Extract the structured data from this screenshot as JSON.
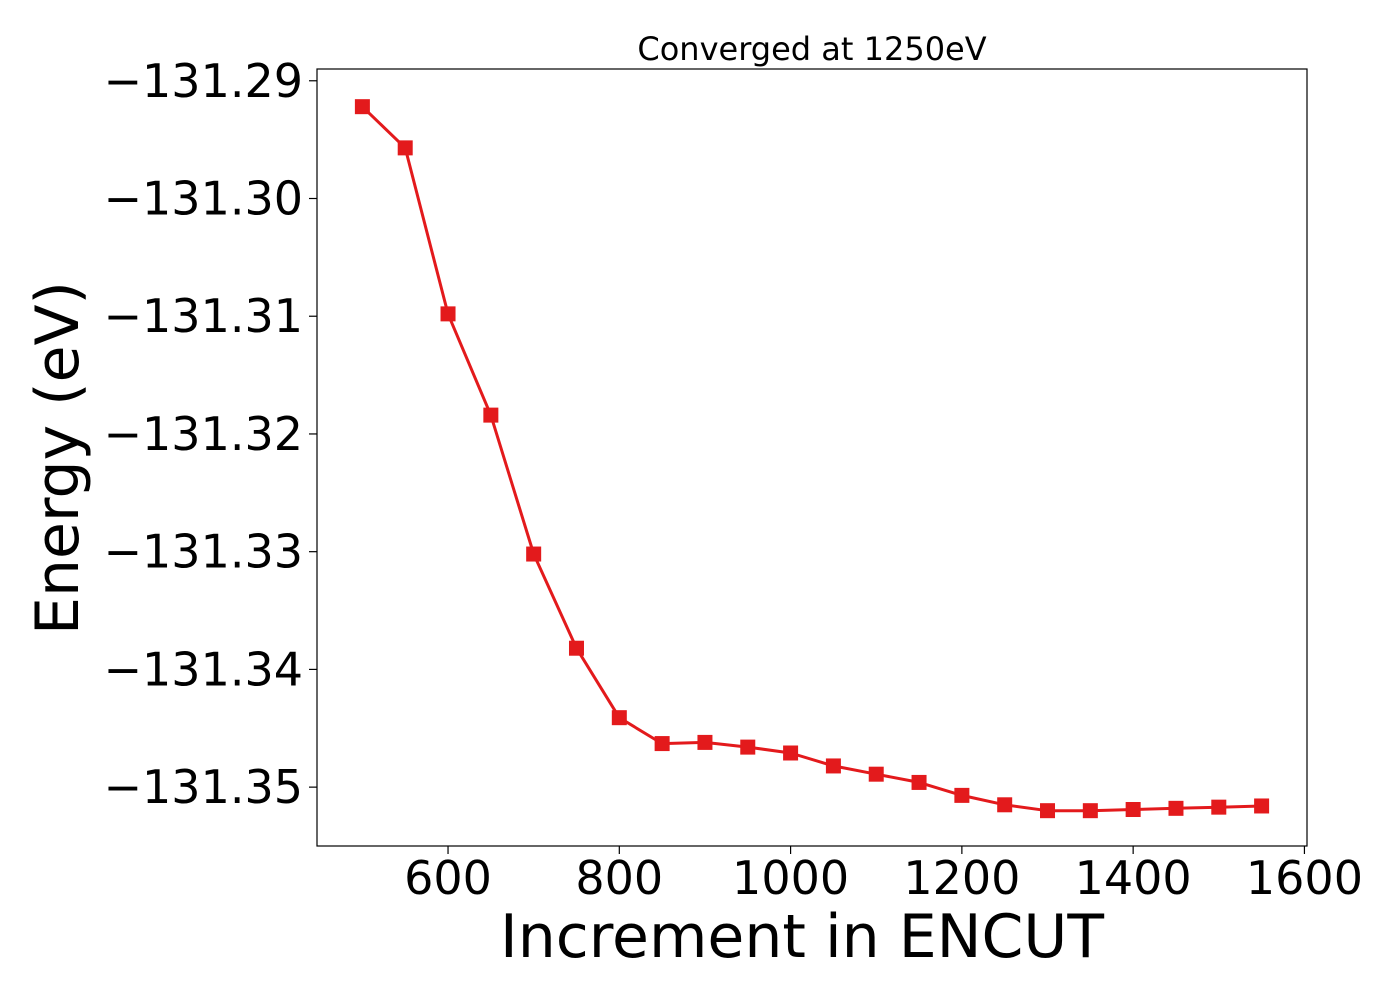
{
  "chart_data": {
    "type": "line",
    "title": "Converged at 1250eV",
    "xlabel": "Increment in ENCUT",
    "ylabel": "Energy (eV)",
    "xlim": [
      447,
      1603
    ],
    "ylim": [
      -131.355,
      -131.289
    ],
    "xticks": [
      600,
      800,
      1000,
      1200,
      1400,
      1600
    ],
    "xtick_labels": [
      "600",
      "800",
      "1000",
      "1200",
      "1400",
      "1600"
    ],
    "yticks": [
      -131.29,
      -131.3,
      -131.31,
      -131.32,
      -131.33,
      -131.34,
      -131.35
    ],
    "ytick_labels": [
      "−131.29",
      "−131.30",
      "−131.31",
      "−131.32",
      "−131.33",
      "−131.34",
      "−131.35"
    ],
    "grid": false,
    "legend": "none",
    "series": [
      {
        "color": "#e31a1c",
        "marker": "square",
        "x": [
          500,
          550,
          600,
          650,
          700,
          750,
          800,
          850,
          900,
          950,
          1000,
          1050,
          1100,
          1150,
          1200,
          1250,
          1300,
          1350,
          1400,
          1450,
          1500,
          1550
        ],
        "y": [
          -131.2922,
          -131.2957,
          -131.3098,
          -131.3184,
          -131.3302,
          -131.3382,
          -131.3441,
          -131.3463,
          -131.3462,
          -131.3466,
          -131.3471,
          -131.3482,
          -131.3489,
          -131.3496,
          -131.3507,
          -131.3515,
          -131.352,
          -131.352,
          -131.3519,
          -131.3518,
          -131.3517,
          -131.3516
        ]
      }
    ]
  }
}
